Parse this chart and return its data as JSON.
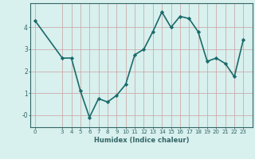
{
  "xlabel": "Humidex (Indice chaleur)",
  "ylabel": "",
  "x_values": [
    0,
    3,
    4,
    5,
    6,
    7,
    8,
    9,
    10,
    11,
    12,
    13,
    14,
    15,
    16,
    17,
    18,
    19,
    20,
    21,
    22,
    23
  ],
  "y_values": [
    4.3,
    2.6,
    2.6,
    1.1,
    -0.1,
    0.75,
    0.6,
    0.9,
    1.4,
    2.75,
    3.0,
    3.8,
    4.7,
    4.0,
    4.5,
    4.4,
    3.8,
    2.45,
    2.6,
    2.35,
    1.75,
    3.45
  ],
  "line_color": "#1a6b6b",
  "marker": "D",
  "marker_size": 2.2,
  "bg_color": "#d8f0ee",
  "grid_color": "#c9a0a0",
  "axis_color": "#336666",
  "ylim": [
    -0.55,
    5.1
  ],
  "xlim": [
    -0.5,
    24.0
  ],
  "yticks": [
    0,
    1,
    2,
    3,
    4
  ],
  "ytick_labels": [
    "-0",
    "1",
    "2",
    "3",
    "4"
  ],
  "xticks": [
    0,
    3,
    4,
    5,
    6,
    7,
    8,
    9,
    10,
    11,
    12,
    13,
    14,
    15,
    16,
    17,
    18,
    19,
    20,
    21,
    22,
    23
  ],
  "linewidth": 1.2,
  "xlabel_fontsize": 6.0,
  "tick_fontsize": 5.0
}
